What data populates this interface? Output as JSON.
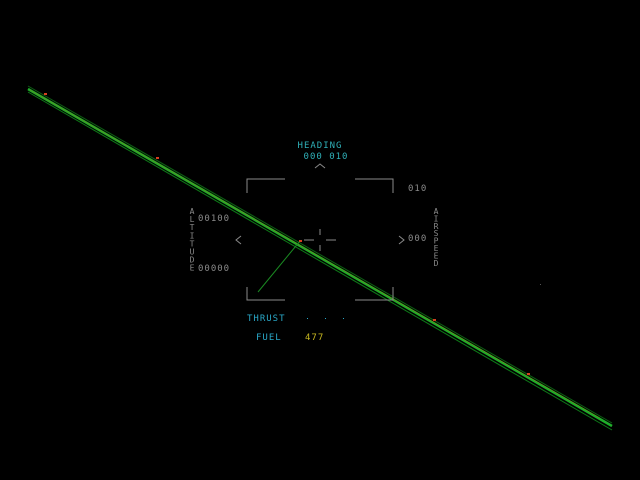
{
  "colors": {
    "background": "#000000",
    "hud_cyan": "#2fb0b8",
    "hud_grey": "#8a8a8a",
    "ground_line": "#1fae2a",
    "ground_line_dark": "#0d5f14",
    "marker": "#d84020",
    "fuel_value": "#c8b820",
    "thrust_label": "#2aa8c8",
    "fuel_label": "#2aa8c8"
  },
  "hud": {
    "heading_label": "HEADING",
    "heading_value": "000 010",
    "altitude_label": "ALTITUDE",
    "altitude_upper": "00100",
    "altitude_lower": "00000",
    "airspeed_label": "AIRSPEED",
    "airspeed_upper": "010",
    "airspeed_lower": "000",
    "thrust_label": "THRUST",
    "fuel_label": "FUEL",
    "fuel_value": "477"
  },
  "icons": {
    "heading_caret": "chevron-up-icon",
    "left_caret": "chevron-left-icon",
    "right_caret": "chevron-right-icon",
    "crosshair": "crosshair-icon"
  }
}
